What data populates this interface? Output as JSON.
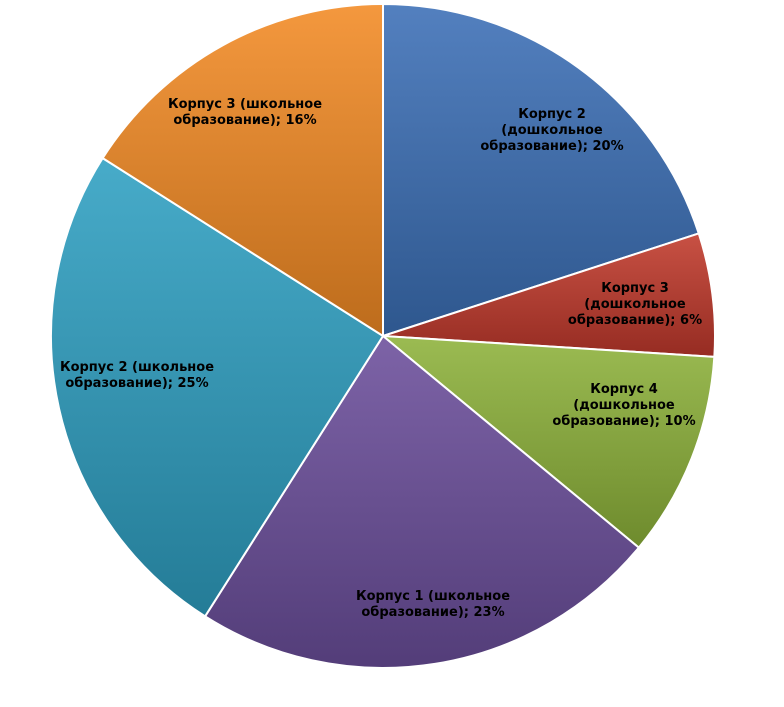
{
  "chart_data": {
    "type": "pie",
    "start_angle_deg": 0,
    "direction": "clockwise",
    "slices": [
      {
        "label_lines": [
          "Корпус 2",
          "(дошкольное",
          "образование);  20%"
        ],
        "category": "Корпус 2 (дошкольное образование)",
        "value": 20,
        "color": "#3B6FB6"
      },
      {
        "label_lines": [
          "Корпус 3",
          "(дошкольное",
          "образование);  6%"
        ],
        "category": "Корпус 3 (дошкольное образование)",
        "value": 6,
        "color": "#C0392B"
      },
      {
        "label_lines": [
          "Корпус 4",
          "(дошкольное",
          "образование);  10%"
        ],
        "category": "Корпус 4 (дошкольное образование)",
        "value": 10,
        "color": "#8DB23A"
      },
      {
        "label_lines": [
          "Корпус 1 (школьное",
          "образование);  23%"
        ],
        "category": "Корпус 1 (школьное образование)",
        "value": 23,
        "color": "#6B4E9B"
      },
      {
        "label_lines": [
          "Корпус 2 (школьное",
          "образование);  25%"
        ],
        "category": "Корпус 2 (школьное образование)",
        "value": 25,
        "color": "#2E9FC2"
      },
      {
        "label_lines": [
          "Корпус 3 (школьное",
          "образование);  16%"
        ],
        "category": "Корпус 3 (школьное образование)",
        "value": 16,
        "color": "#F28A24"
      }
    ]
  }
}
